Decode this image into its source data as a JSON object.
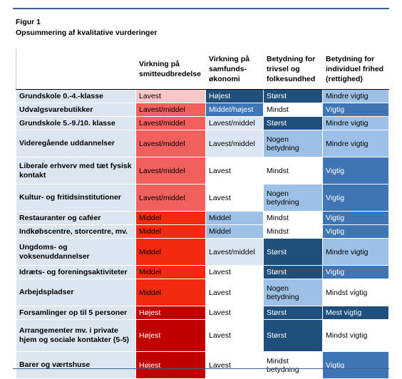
{
  "figure": {
    "label": "Figur 1",
    "title": "Opsummering af kvalitative vurderinger"
  },
  "columns": [
    "Virkning på smitteudbredelse",
    "Virkning på samfunds-økonomi",
    "Betydning for trivsel og folkesundhed",
    "Betydning for individuel frihed (rettighed)"
  ],
  "colors": {
    "red_light": "#f9c7c7",
    "red_medium": "#f2605d",
    "red_strong": "#f32a0f",
    "red_dark": "#c00000",
    "blue_pale": "#dbe6f2",
    "blue_light": "#9dc0e6",
    "blue_medium": "#3f75b4",
    "blue_dark": "#1f4f7a",
    "row_header": "#dce6f1",
    "frame": "#3f5f8a"
  },
  "rows": [
    {
      "label": "Grundskole 0.-4.-klasse",
      "cells": [
        "Lavest",
        "Højest",
        "Størst",
        "Mindre vigtig"
      ]
    },
    {
      "label": "Udvalgsvarebutikker",
      "cells": [
        "Lavest/middel",
        "Middel/højest",
        "Mindst",
        "Vigtig"
      ]
    },
    {
      "label": "Grundskole 5.-9./10. klasse",
      "cells": [
        "Lavest/middel",
        "Lavest/middel",
        "Størst",
        "Mindre vigtig"
      ]
    },
    {
      "label": "Videregående uddannelser",
      "cells": [
        "Lavest/middel",
        "Lavest/middel",
        "Nogen betydning",
        "Mindre vigtig"
      ]
    },
    {
      "label": "Liberale erhverv med tæt fysisk kontakt",
      "cells": [
        "Lavest/middel",
        "Lavest",
        "Mindst",
        "Vigtig"
      ]
    },
    {
      "label": "Kultur- og fritidsinstitutioner",
      "cells": [
        "Lavest/middel",
        "Lavest",
        "Nogen betydning",
        "Vigtig"
      ]
    },
    {
      "label": "Restauranter og caféer",
      "cells": [
        "Middel",
        "Middel",
        "Mindst",
        "Vigtig"
      ]
    },
    {
      "label": "Indkøbscentre, storcentre, mv.",
      "cells": [
        "Middel",
        "Middel",
        "Mindst",
        "Vigtig"
      ]
    },
    {
      "label": "Ungdoms- og voksenuddannelser",
      "cells": [
        "Middel",
        "Lavest/middel",
        "Størst",
        "Mindre vigtig"
      ]
    },
    {
      "label": "Idræts- og foreningsaktiviteter",
      "cells": [
        "Middel",
        "Lavest",
        "Størst",
        "Vigtig"
      ]
    },
    {
      "label": "Arbejdspladser",
      "cells": [
        "Middel",
        "Lavest",
        "Nogen betydning",
        "Mindst vigtig"
      ]
    },
    {
      "label": "Forsamlinger op til 5 personer",
      "cells": [
        "Højest",
        "Lavest",
        "Størst",
        "Mest vigtig"
      ]
    },
    {
      "label": "Arrangementer mv. i private hjem og sociale kontakter (5-5)",
      "cells": [
        "Højest",
        "Lavest",
        "Størst",
        "Mindst vigtig"
      ]
    },
    {
      "label": "Barer og værtshuse",
      "cells": [
        "Højest",
        "Lavest",
        "Mindst betydning",
        "Vigtig"
      ]
    }
  ]
}
